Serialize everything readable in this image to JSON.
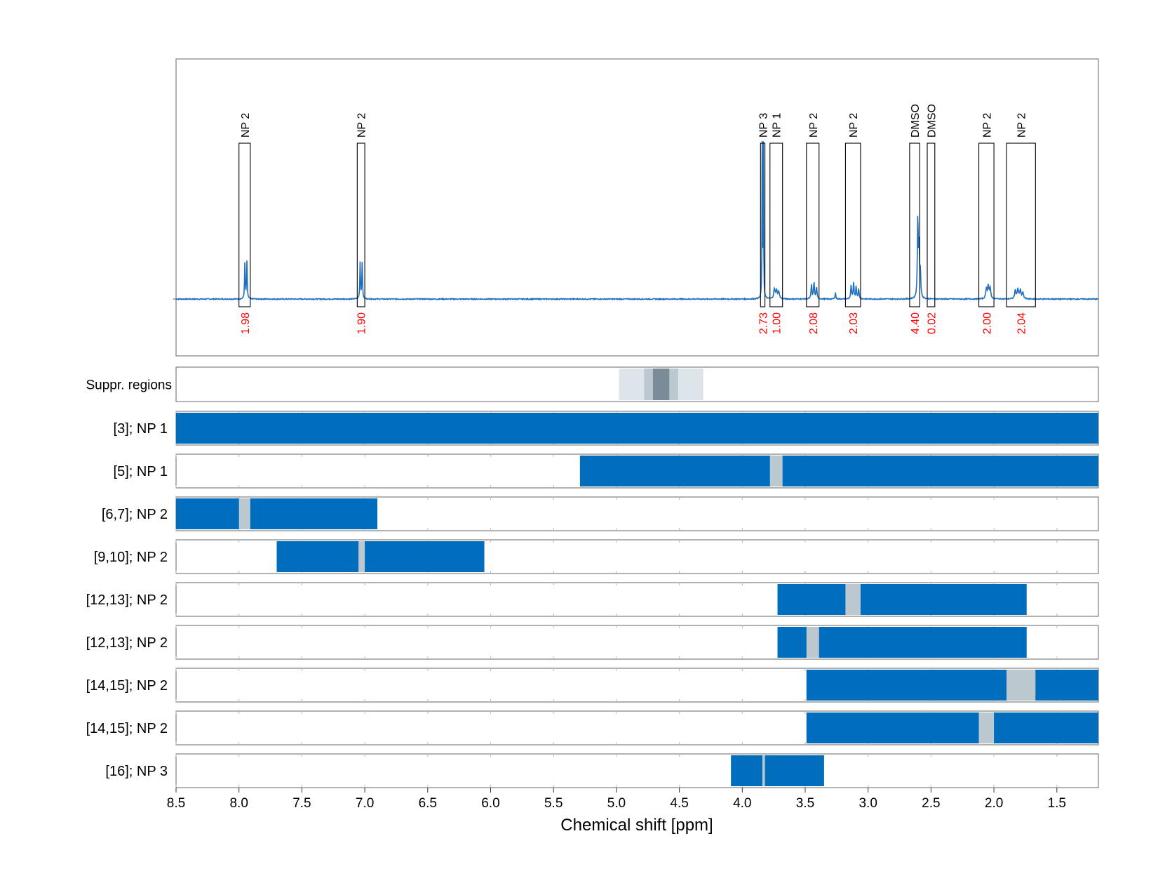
{
  "chart_data": {
    "type": "line",
    "xlabel": "Chemical shift [ppm]",
    "xlim": [
      8.5,
      1.17
    ],
    "x_reversed": true,
    "x_ticks": [
      8.5,
      8.0,
      7.5,
      7.0,
      6.5,
      6.0,
      5.5,
      5.0,
      4.5,
      4.0,
      3.5,
      3.0,
      2.5,
      2.0,
      1.5
    ],
    "x_tick_labels": [
      "8.5",
      "8.0",
      "7.5",
      "7.0",
      "6.5",
      "6.0",
      "5.5",
      "5.0",
      "4.5",
      "4.0",
      "3.5",
      "3.0",
      "2.5",
      "2.0",
      "1.5"
    ],
    "grid": "dashed vertical",
    "colors": {
      "spectrum": "#1f6fbf",
      "bar": "#006dbd",
      "gap": "#bcc8d0",
      "integral": "#ff0000",
      "suppression_light": "#dde4ea",
      "suppression_mid": "#bcc8d0",
      "suppression_dark": "#7a8c98"
    },
    "spectrum": {
      "baseline": 0,
      "ylim": [
        -0.22,
        1.0
      ],
      "peaks": [
        {
          "ppm": 7.953,
          "height": 0.15,
          "width": 0.003
        },
        {
          "ppm": 7.937,
          "height": 0.15,
          "width": 0.003
        },
        {
          "ppm": 7.037,
          "height": 0.15,
          "width": 0.003
        },
        {
          "ppm": 7.021,
          "height": 0.15,
          "width": 0.003
        },
        {
          "ppm": 3.842,
          "height": 0.62,
          "width": 0.002
        },
        {
          "ppm": 3.832,
          "height": 0.62,
          "width": 0.002
        },
        {
          "ppm": 3.745,
          "height": 0.04,
          "width": 0.006
        },
        {
          "ppm": 3.728,
          "height": 0.035,
          "width": 0.006
        },
        {
          "ppm": 3.71,
          "height": 0.03,
          "width": 0.006
        },
        {
          "ppm": 3.45,
          "height": 0.06,
          "width": 0.004
        },
        {
          "ppm": 3.43,
          "height": 0.07,
          "width": 0.004
        },
        {
          "ppm": 3.41,
          "height": 0.05,
          "width": 0.004
        },
        {
          "ppm": 3.26,
          "height": 0.03,
          "width": 0.003
        },
        {
          "ppm": 3.135,
          "height": 0.055,
          "width": 0.004
        },
        {
          "ppm": 3.115,
          "height": 0.065,
          "width": 0.004
        },
        {
          "ppm": 3.095,
          "height": 0.05,
          "width": 0.004
        },
        {
          "ppm": 3.075,
          "height": 0.04,
          "width": 0.004
        },
        {
          "ppm": 2.605,
          "height": 0.33,
          "width": 0.004
        },
        {
          "ppm": 2.595,
          "height": 0.2,
          "width": 0.004
        },
        {
          "ppm": 2.585,
          "height": 0.1,
          "width": 0.004
        },
        {
          "ppm": 2.06,
          "height": 0.04,
          "width": 0.006
        },
        {
          "ppm": 2.045,
          "height": 0.05,
          "width": 0.006
        },
        {
          "ppm": 2.03,
          "height": 0.04,
          "width": 0.006
        },
        {
          "ppm": 1.83,
          "height": 0.035,
          "width": 0.006
        },
        {
          "ppm": 1.81,
          "height": 0.04,
          "width": 0.006
        },
        {
          "ppm": 1.79,
          "height": 0.035,
          "width": 0.006
        },
        {
          "ppm": 1.77,
          "height": 0.025,
          "width": 0.006
        }
      ]
    },
    "annotations": [
      {
        "label": "NP 2",
        "from": 8.0,
        "to": 7.91,
        "integral": "1.98"
      },
      {
        "label": "NP 2",
        "from": 7.06,
        "to": 7.0,
        "integral": "1.90"
      },
      {
        "label": "NP 3",
        "from": 3.855,
        "to": 3.82,
        "integral": "2.73"
      },
      {
        "label": "NP 1",
        "from": 3.78,
        "to": 3.68,
        "integral": "1.00"
      },
      {
        "label": "NP 2",
        "from": 3.49,
        "to": 3.39,
        "integral": "2.08"
      },
      {
        "label": "NP 2",
        "from": 3.18,
        "to": 3.06,
        "integral": "2.03"
      },
      {
        "label": "DMSO",
        "from": 2.67,
        "to": 2.59,
        "integral": "4.40"
      },
      {
        "label": "DMSO",
        "from": 2.53,
        "to": 2.47,
        "integral": "0.02"
      },
      {
        "label": "NP 2",
        "from": 2.12,
        "to": 2.0,
        "integral": "2.00"
      },
      {
        "label": "NP 2",
        "from": 1.9,
        "to": 1.67,
        "integral": "2.04"
      }
    ],
    "suppression": {
      "label": "Suppr. regions",
      "bands": [
        {
          "from": 4.98,
          "to": 4.31,
          "shade": "light"
        },
        {
          "from": 4.78,
          "to": 4.51,
          "shade": "mid"
        },
        {
          "from": 4.71,
          "to": 4.58,
          "shade": "dark"
        }
      ]
    },
    "tracks": [
      {
        "label": "[3]; NP 1",
        "bars": [
          [
            8.5,
            1.17
          ]
        ],
        "gaps": []
      },
      {
        "label": "[5]; NP 1",
        "bars": [
          [
            5.29,
            1.17
          ]
        ],
        "gaps": [
          [
            3.78,
            3.68
          ]
        ]
      },
      {
        "label": "[6,7]; NP 2",
        "bars": [
          [
            8.5,
            6.9
          ]
        ],
        "gaps": [
          [
            8.0,
            7.91
          ]
        ]
      },
      {
        "label": "[9,10]; NP 2",
        "bars": [
          [
            7.7,
            6.05
          ]
        ],
        "gaps": [
          [
            7.05,
            7.0
          ]
        ]
      },
      {
        "label": "[12,13]; NP 2",
        "bars": [
          [
            3.72,
            1.74
          ]
        ],
        "gaps": [
          [
            3.18,
            3.06
          ]
        ]
      },
      {
        "label": "[12,13]; NP 2",
        "bars": [
          [
            3.72,
            1.74
          ]
        ],
        "gaps": [
          [
            3.49,
            3.39
          ]
        ]
      },
      {
        "label": "[14,15]; NP 2",
        "bars": [
          [
            3.49,
            1.17
          ]
        ],
        "gaps": [
          [
            1.9,
            1.67
          ]
        ]
      },
      {
        "label": "[14,15]; NP 2",
        "bars": [
          [
            3.49,
            1.17
          ]
        ],
        "gaps": [
          [
            2.12,
            2.0
          ]
        ]
      },
      {
        "label": "[16]; NP 3",
        "bars": [
          [
            4.09,
            3.35
          ]
        ],
        "gaps": [
          [
            3.84,
            3.82
          ]
        ]
      }
    ]
  }
}
